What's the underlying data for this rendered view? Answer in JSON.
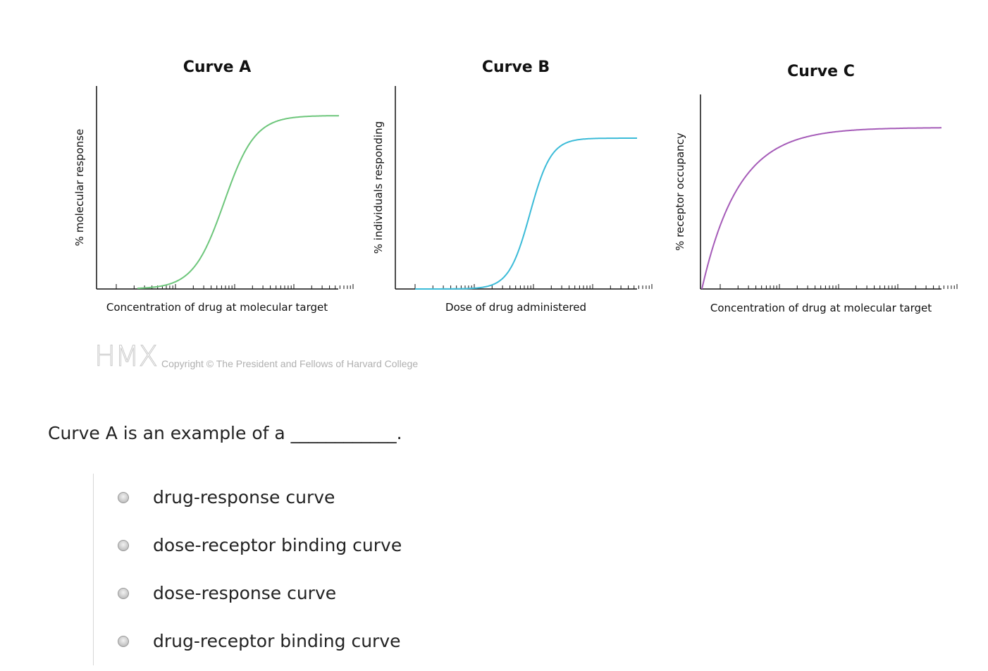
{
  "chart_data": [
    {
      "type": "line",
      "title": "Curve A",
      "xlabel": "Concentration of drug at molecular target",
      "ylabel": "% molecular response",
      "color": "#6dc67b",
      "x_scale": "log",
      "shape": "sigmoid"
    },
    {
      "type": "line",
      "title": "Curve B",
      "xlabel": "Dose of drug administered",
      "ylabel": "% individuals responding",
      "color": "#3bbbd8",
      "x_scale": "log",
      "shape": "sigmoid"
    },
    {
      "type": "line",
      "title": "Curve C",
      "xlabel": "Concentration of drug at molecular target",
      "ylabel": "% receptor occupancy",
      "color": "#a55bb8",
      "x_scale": "log",
      "shape": "hyperbolic"
    }
  ],
  "watermark": {
    "logo": "HMX",
    "copyright": "Copyright © The President and Fellows of Harvard College"
  },
  "question": {
    "prompt": "Curve A is an example of a ____________.",
    "options": [
      "drug-response curve",
      "dose-receptor binding curve",
      "dose-response curve",
      "drug-receptor binding curve"
    ]
  }
}
